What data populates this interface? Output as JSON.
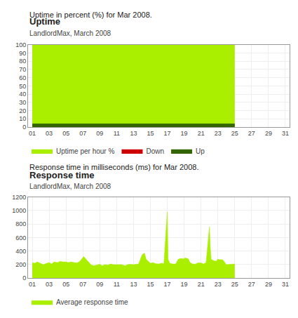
{
  "chart_data": [
    {
      "type": "area",
      "title": "Uptime",
      "subtitle": "LandlordMax, March 2008",
      "annotations": [
        "Uptime in percent (%) for Mar 2008."
      ],
      "x": [
        1,
        2,
        3,
        4,
        5,
        6,
        7,
        8,
        9,
        10,
        11,
        12,
        13,
        14,
        15,
        16,
        17,
        18,
        19,
        20,
        21,
        22,
        23,
        24,
        25
      ],
      "series": [
        {
          "name": "Uptime per hour %",
          "color": "#aaee00",
          "values": [
            100,
            100,
            100,
            100,
            100,
            100,
            100,
            100,
            100,
            100,
            100,
            100,
            100,
            100,
            100,
            100,
            100,
            100,
            100,
            100,
            100,
            100,
            100,
            100,
            100
          ]
        },
        {
          "name": "Down",
          "color": "#cc0000",
          "values": [
            null,
            null,
            null,
            null,
            null,
            null,
            null,
            null,
            null,
            null,
            null,
            null,
            null,
            null,
            null,
            null,
            null,
            null,
            null,
            null,
            null,
            null,
            null,
            null,
            null
          ]
        },
        {
          "name": "Up",
          "color": "#336600",
          "values": [
            4,
            4,
            4,
            4,
            4,
            4,
            4,
            4,
            4,
            4,
            4,
            4,
            4,
            4,
            4,
            4,
            4,
            4,
            4,
            4,
            4,
            4,
            4,
            4,
            4
          ]
        }
      ],
      "xlim": [
        0.5,
        31.5
      ],
      "xticks": [
        {
          "value": 1,
          "label": "01"
        },
        {
          "value": 3,
          "label": "03"
        },
        {
          "value": 5,
          "label": "05"
        },
        {
          "value": 7,
          "label": "07"
        },
        {
          "value": 9,
          "label": "09"
        },
        {
          "value": 11,
          "label": "11"
        },
        {
          "value": 13,
          "label": "13"
        },
        {
          "value": 15,
          "label": "15"
        },
        {
          "value": 17,
          "label": "17"
        },
        {
          "value": 19,
          "label": "19"
        },
        {
          "value": 21,
          "label": "21"
        },
        {
          "value": 23,
          "label": "23"
        },
        {
          "value": 25,
          "label": "25"
        },
        {
          "value": 27,
          "label": "27"
        },
        {
          "value": 29,
          "label": "29"
        },
        {
          "value": 31,
          "label": "31"
        }
      ],
      "ylim": [
        0,
        100
      ],
      "yticks": [
        0,
        10,
        20,
        30,
        40,
        50,
        60,
        70,
        80,
        90,
        100
      ],
      "grid": true,
      "legend": "bottom left"
    },
    {
      "type": "area",
      "title": "Response time",
      "subtitle": "LandlordMax, March 2008",
      "annotations": [
        "Response time in milliseconds (ms) for Mar 2008."
      ],
      "x": [
        1,
        1.3,
        1.6,
        2,
        2.3,
        2.6,
        3,
        3.3,
        3.6,
        4,
        4.3,
        4.6,
        5,
        5.3,
        5.6,
        6,
        6.3,
        6.6,
        7,
        7.1,
        7.3,
        7.5,
        7.7,
        8,
        8.3,
        8.6,
        9,
        9.3,
        9.6,
        10,
        10.3,
        10.6,
        11,
        11.3,
        11.6,
        12,
        12.3,
        12.6,
        13,
        13.3,
        13.6,
        14,
        14.1,
        14.3,
        14.5,
        15,
        15.3,
        15.6,
        16,
        16.3,
        16.6,
        17,
        17.05,
        17.1,
        17.3,
        17.6,
        18,
        18.3,
        18.6,
        19,
        19.1,
        19.3,
        19.5,
        19.7,
        20,
        20.3,
        20.6,
        21,
        21.3,
        21.6,
        22,
        22.1,
        22.2,
        22.4,
        22.6,
        22.8,
        23,
        23.1,
        23.3,
        23.6,
        24,
        24.3,
        24.6,
        25
      ],
      "series": [
        {
          "name": "Average response time",
          "color": "#aaee00",
          "values": [
            230,
            220,
            240,
            220,
            200,
            215,
            230,
            210,
            240,
            230,
            250,
            240,
            240,
            230,
            240,
            230,
            225,
            245,
            300,
            320,
            290,
            260,
            240,
            195,
            185,
            195,
            205,
            185,
            200,
            195,
            210,
            200,
            200,
            195,
            200,
            185,
            200,
            205,
            200,
            205,
            210,
            340,
            355,
            370,
            280,
            220,
            230,
            215,
            210,
            220,
            215,
            980,
            600,
            280,
            220,
            210,
            210,
            280,
            290,
            285,
            300,
            295,
            285,
            230,
            210,
            205,
            225,
            225,
            210,
            230,
            760,
            450,
            280,
            265,
            255,
            250,
            280,
            275,
            275,
            270,
            200,
            205,
            210,
            210
          ]
        }
      ],
      "xlim": [
        0.5,
        31.5
      ],
      "xticks": [
        {
          "value": 1,
          "label": "01"
        },
        {
          "value": 3,
          "label": "03"
        },
        {
          "value": 5,
          "label": "05"
        },
        {
          "value": 7,
          "label": "07"
        },
        {
          "value": 9,
          "label": "09"
        },
        {
          "value": 11,
          "label": "11"
        },
        {
          "value": 13,
          "label": "13"
        },
        {
          "value": 15,
          "label": "15"
        },
        {
          "value": 17,
          "label": "17"
        },
        {
          "value": 19,
          "label": "19"
        },
        {
          "value": 21,
          "label": "21"
        },
        {
          "value": 23,
          "label": "23"
        },
        {
          "value": 25,
          "label": "25"
        },
        {
          "value": 27,
          "label": "27"
        },
        {
          "value": 29,
          "label": "29"
        },
        {
          "value": 31,
          "label": "31"
        }
      ],
      "ylim": [
        0,
        1200
      ],
      "yticks": [
        0,
        200,
        400,
        600,
        800,
        1000,
        1200
      ],
      "grid": true,
      "legend": "bottom left"
    }
  ]
}
